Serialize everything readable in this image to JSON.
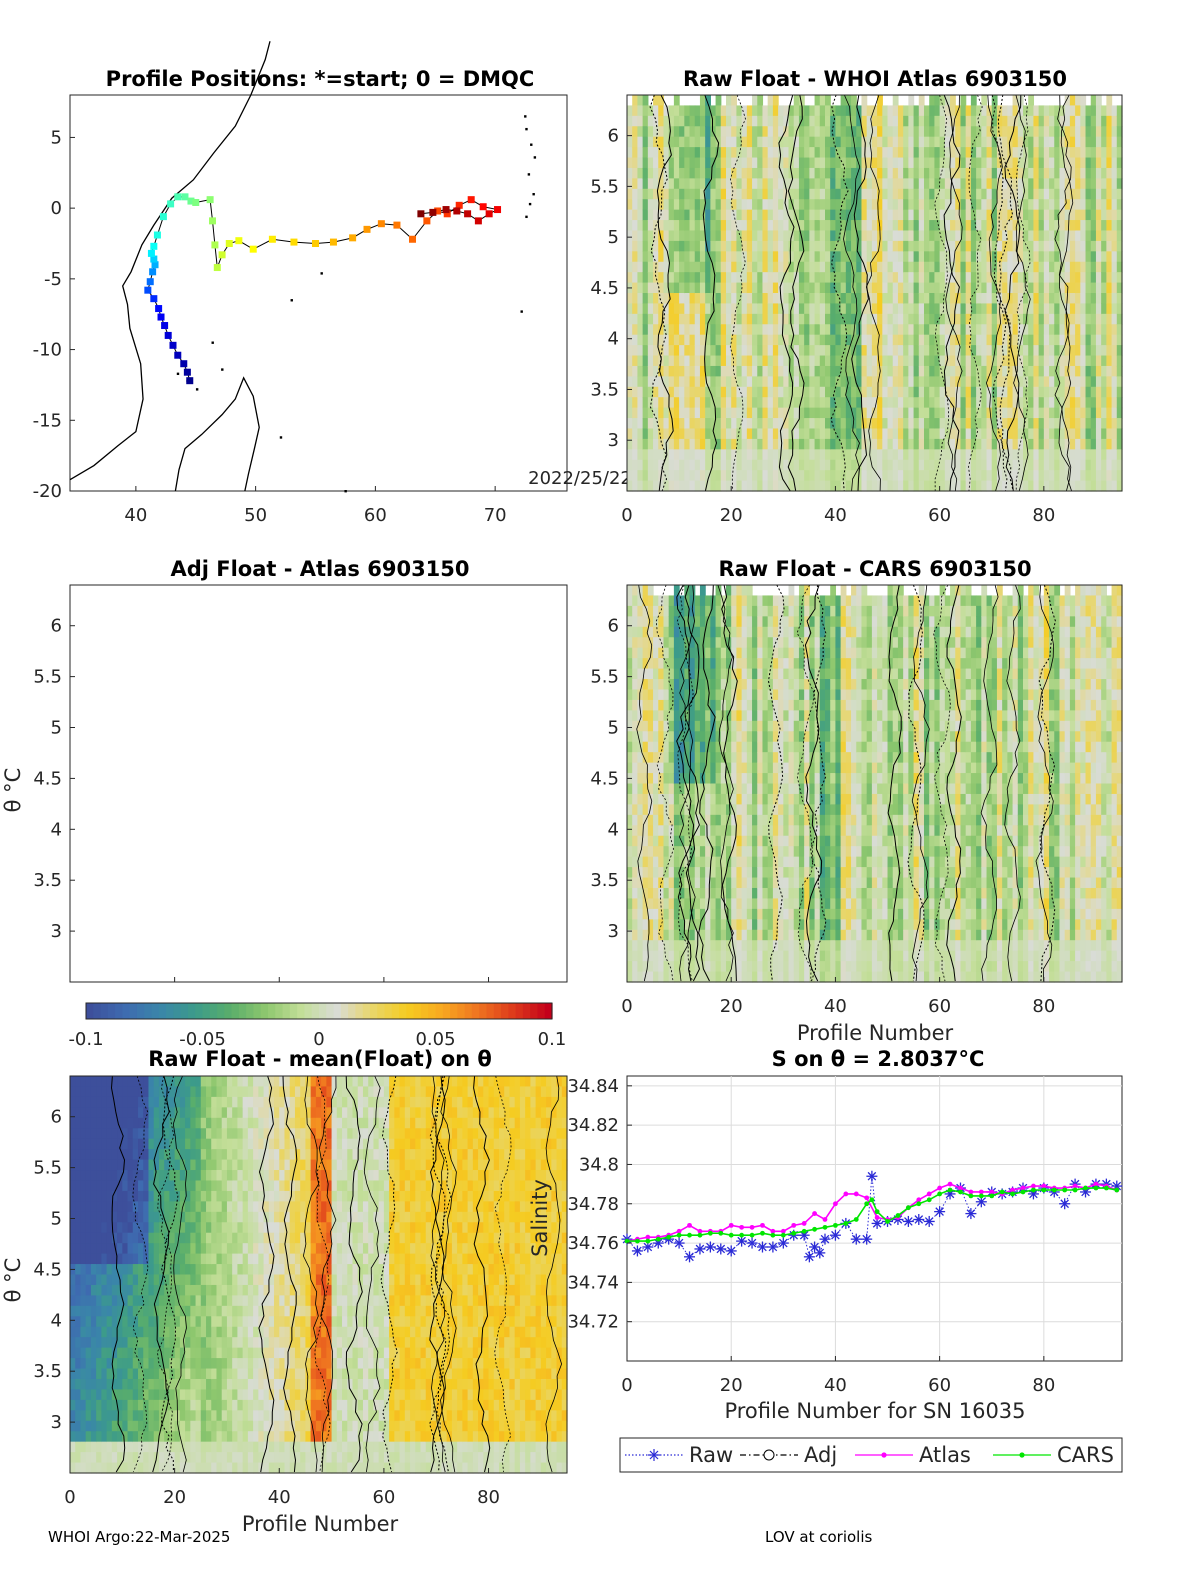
{
  "footer": {
    "left": "WHOI Argo:22-Mar-2025",
    "right": "LOV at coriolis"
  },
  "colorbar": {
    "ticks": [
      "-0.1",
      "-0.05",
      "0",
      "0.05",
      "0.1"
    ],
    "range": [
      -0.1,
      0.1
    ],
    "colors": [
      "#3d4f9b",
      "#3e6bb0",
      "#3a86a9",
      "#3c9b8a",
      "#5aae6b",
      "#8ec76e",
      "#c3de98",
      "#d9dcd6",
      "#e8d66a",
      "#f5cc21",
      "#f8a820",
      "#ef7420",
      "#dd3a1b",
      "#c4001a"
    ]
  },
  "chart_data": [
    {
      "type": "scatter",
      "name": "map",
      "title": "Profile Positions: *=start; 0 = DMQC",
      "date_label": "2022/25/22",
      "xlim": [
        34.5,
        76
      ],
      "ylim": [
        -20,
        8
      ],
      "xticks": [
        "40",
        "50",
        "60",
        "70"
      ],
      "yticks": [
        "5",
        "0",
        "-5",
        "-10",
        "-15",
        "-20"
      ],
      "track": {
        "lon": [
          44.5,
          44.3,
          44.0,
          43.5,
          43.1,
          42.7,
          42.4,
          42.1,
          41.9,
          41.5,
          41.0,
          41.2,
          41.4,
          41.6,
          41.5,
          41.3,
          41.5,
          41.8,
          42.3,
          42.9,
          43.5,
          44.1,
          44.6,
          45.0,
          46.2,
          46.4,
          46.6,
          46.8,
          47.2,
          47.8,
          48.6,
          49.8,
          51.4,
          53.2,
          55.0,
          56.5,
          58.1,
          59.3,
          60.5,
          61.8,
          63.1,
          64.3,
          65.2,
          66.0,
          67.0,
          68.0,
          69.0,
          70.2,
          69.5,
          68.6,
          67.7,
          66.8,
          65.9,
          64.8,
          63.8
        ],
        "lat": [
          -12.2,
          -11.6,
          -11.0,
          -10.4,
          -9.7,
          -9.0,
          -8.3,
          -7.7,
          -7.1,
          -6.4,
          -5.8,
          -5.2,
          -4.5,
          -4.0,
          -3.6,
          -3.2,
          -2.7,
          -1.9,
          -0.6,
          0.3,
          0.8,
          0.8,
          0.5,
          0.4,
          0.6,
          -0.9,
          -2.6,
          -4.2,
          -3.3,
          -2.5,
          -2.3,
          -2.9,
          -2.2,
          -2.4,
          -2.5,
          -2.4,
          -2.1,
          -1.5,
          -1.1,
          -1.2,
          -2.2,
          -0.9,
          -0.2,
          -0.4,
          0.2,
          0.6,
          0.1,
          -0.1,
          -0.4,
          -0.9,
          -0.4,
          -0.2,
          -0.1,
          -0.3,
          -0.4
        ]
      }
    },
    {
      "type": "heatmap",
      "name": "whoi",
      "title": "Raw Float - WHOI Atlas  6903150",
      "xlim": [
        0,
        95
      ],
      "ylim": [
        2.5,
        6.4
      ],
      "xticks": [
        "0",
        "20",
        "40",
        "60",
        "80"
      ],
      "yticks": [
        "6",
        "5.5",
        "5",
        "4.5",
        "4",
        "3.5",
        "3"
      ],
      "xlabel": "",
      "ylabel": ""
    },
    {
      "type": "heatmap",
      "name": "adj",
      "title": "Adj Float - Atlas  6903150",
      "xlim": [
        0,
        95
      ],
      "ylim": [
        2.5,
        6.4
      ],
      "xticks": [],
      "yticks": [
        "6",
        "5.5",
        "5",
        "4.5",
        "4",
        "3.5",
        "3"
      ],
      "xlabel": "",
      "ylabel": "θ °C"
    },
    {
      "type": "heatmap",
      "name": "cars",
      "title": "Raw Float - CARS  6903150",
      "xlim": [
        0,
        95
      ],
      "ylim": [
        2.5,
        6.4
      ],
      "xticks": [
        "0",
        "20",
        "40",
        "60",
        "80"
      ],
      "yticks": [
        "6",
        "5.5",
        "5",
        "4.5",
        "4",
        "3.5",
        "3"
      ],
      "xlabel": "Profile Number",
      "ylabel": ""
    },
    {
      "type": "heatmap",
      "name": "mean",
      "title": "Raw Float - mean(Float) on θ",
      "xlim": [
        0,
        95
      ],
      "ylim": [
        2.5,
        6.4
      ],
      "xticks": [
        "0",
        "20",
        "40",
        "60",
        "80"
      ],
      "yticks": [
        "6",
        "5.5",
        "5",
        "4.5",
        "4",
        "3.5",
        "3"
      ],
      "xlabel": "Profile Number",
      "ylabel": "θ °C"
    },
    {
      "type": "line",
      "name": "salinity",
      "title": "S on θ = 2.8037°C",
      "xlim": [
        0,
        95
      ],
      "ylim": [
        34.7,
        34.845
      ],
      "xticks": [
        "0",
        "20",
        "40",
        "60",
        "80"
      ],
      "yticks": [
        "34.84",
        "34.82",
        "34.8",
        "34.78",
        "34.76",
        "34.74",
        "34.72"
      ],
      "xlabel": "Profile Number for SN 16035",
      "ylabel": "Salinity",
      "legend": [
        "Raw",
        "Adj",
        "Atlas",
        "CARS"
      ],
      "legend_position": "bottom",
      "series": [
        {
          "name": "Raw",
          "color": "#2b2bd6",
          "x": [
            0,
            2,
            4,
            6,
            8,
            10,
            12,
            14,
            16,
            18,
            20,
            22,
            24,
            26,
            28,
            30,
            32,
            34,
            35,
            36,
            37,
            38,
            40,
            42,
            44,
            46,
            47,
            48,
            50,
            52,
            54,
            56,
            58,
            60,
            62,
            64,
            66,
            68,
            70,
            72,
            74,
            76,
            78,
            80,
            82,
            84,
            86,
            88,
            90,
            92,
            94
          ],
          "y": [
            34.762,
            34.756,
            34.758,
            34.76,
            34.762,
            34.76,
            34.753,
            34.757,
            34.758,
            34.757,
            34.756,
            34.761,
            34.76,
            34.758,
            34.758,
            34.76,
            34.764,
            34.764,
            34.753,
            34.758,
            34.755,
            34.762,
            34.764,
            34.77,
            34.762,
            34.762,
            34.794,
            34.77,
            34.771,
            34.772,
            34.771,
            34.772,
            34.771,
            34.776,
            34.785,
            34.788,
            34.775,
            34.781,
            34.786,
            34.785,
            34.786,
            34.788,
            34.785,
            34.788,
            34.786,
            34.78,
            34.79,
            34.786,
            34.79,
            34.79,
            34.789
          ]
        },
        {
          "name": "Atlas",
          "color": "#ff00ff",
          "x": [
            0,
            2,
            4,
            6,
            8,
            10,
            12,
            14,
            16,
            18,
            20,
            22,
            24,
            26,
            28,
            30,
            32,
            34,
            36,
            38,
            40,
            42,
            44,
            46,
            48,
            50,
            52,
            54,
            56,
            58,
            60,
            62,
            64,
            66,
            68,
            70,
            72,
            74,
            76,
            78,
            80,
            82,
            84,
            86,
            88,
            90,
            92,
            94
          ],
          "y": [
            34.761,
            34.762,
            34.763,
            34.763,
            34.764,
            34.766,
            34.769,
            34.766,
            34.766,
            34.766,
            34.769,
            34.768,
            34.768,
            34.769,
            34.766,
            34.766,
            34.769,
            34.77,
            34.775,
            34.772,
            34.78,
            34.785,
            34.785,
            34.783,
            34.773,
            34.772,
            34.773,
            34.778,
            34.782,
            34.785,
            34.788,
            34.79,
            34.788,
            34.786,
            34.786,
            34.786,
            34.785,
            34.787,
            34.788,
            34.789,
            34.789,
            34.788,
            34.788,
            34.789,
            34.788,
            34.79,
            34.789,
            34.787
          ]
        },
        {
          "name": "CARS",
          "color": "#00e600",
          "x": [
            0,
            2,
            4,
            6,
            8,
            10,
            12,
            14,
            16,
            18,
            20,
            22,
            24,
            26,
            28,
            30,
            32,
            34,
            36,
            38,
            40,
            42,
            44,
            46,
            47,
            48,
            50,
            52,
            54,
            56,
            58,
            60,
            62,
            64,
            66,
            68,
            70,
            72,
            74,
            76,
            78,
            80,
            82,
            84,
            86,
            88,
            90,
            92,
            94
          ],
          "y": [
            34.761,
            34.761,
            34.761,
            34.762,
            34.763,
            34.764,
            34.764,
            34.764,
            34.765,
            34.765,
            34.764,
            34.764,
            34.764,
            34.765,
            34.764,
            34.764,
            34.765,
            34.766,
            34.767,
            34.768,
            34.769,
            34.77,
            34.772,
            34.78,
            34.782,
            34.776,
            34.771,
            34.774,
            34.778,
            34.78,
            34.782,
            34.785,
            34.787,
            34.786,
            34.784,
            34.784,
            34.784,
            34.786,
            34.785,
            34.786,
            34.787,
            34.787,
            34.787,
            34.787,
            34.787,
            34.788,
            34.788,
            34.788,
            34.787
          ]
        }
      ]
    }
  ]
}
